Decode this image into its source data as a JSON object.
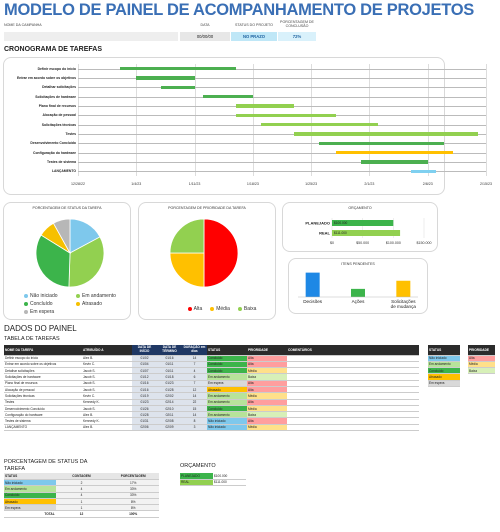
{
  "title": "MODELO DE PAINEL DE ACOMPANHAMENTO DE PROJETOS",
  "header": {
    "labels": [
      "NOME DA CAMPANHA",
      "DATA",
      "STATUS DO PROJETO",
      "PORCENTAGEM DE CONCLUSÃO"
    ],
    "date": "00/00/00",
    "status": "NO PRAZO",
    "pct": "72%"
  },
  "gantt": {
    "title": "CRONOGRAMA DE TAREFAS",
    "tasks": [
      {
        "name": "Definir escopo do início",
        "start": "2023-01-02",
        "end": "2023-01-16",
        "state": "done"
      },
      {
        "name": "Entrar em acordo sobre os objetivos",
        "start": "2023-01-04",
        "end": "2023-01-11",
        "state": "done"
      },
      {
        "name": "Detalhar solicitações",
        "start": "2023-01-07",
        "end": "2023-01-11",
        "state": "done"
      },
      {
        "name": "Solicitações de hardware",
        "start": "2023-01-12",
        "end": "2023-01-18",
        "state": "done"
      },
      {
        "name": "Plano final de recursos",
        "start": "2023-01-16",
        "end": "2023-01-23",
        "state": "planned"
      },
      {
        "name": "Alocação de pessoal",
        "start": "2023-01-16",
        "end": "2023-01-28",
        "state": "planned"
      },
      {
        "name": "Solicitações técnicas",
        "start": "2023-01-19",
        "end": "2023-02-02",
        "state": "planned"
      },
      {
        "name": "Testes",
        "start": "2023-01-23",
        "end": "2023-02-14",
        "state": "planned"
      },
      {
        "name": "Desenvolvimento Concluído",
        "start": "2023-01-26",
        "end": "2023-02-10",
        "state": "done"
      },
      {
        "name": "Configuração do hardware",
        "start": "2023-01-28",
        "end": "2023-02-11",
        "state": "late"
      },
      {
        "name": "Testes de sistema",
        "start": "2023-01-31",
        "end": "2023-02-08",
        "state": "done"
      },
      {
        "name": "LANÇAMENTO",
        "start": "2023-02-06",
        "end": "2023-02-09",
        "state": "notstarted"
      }
    ],
    "ticks": [
      "12/28/22",
      "1/4/23",
      "1/11/23",
      "1/18/23",
      "1/25/23",
      "2/1/23",
      "2/8/23",
      "2/15/23"
    ],
    "colors": {
      "done": "#4caf50",
      "planned": "#92d050",
      "late": "#ffc000",
      "notstarted": "#7fd0f0"
    }
  },
  "pie_status": {
    "title": "PORCENTAGEM DE STATUS DA TAREFA",
    "slices": [
      {
        "label": "Não iniciado",
        "value": 17,
        "color": "#7ec8ec"
      },
      {
        "label": "Em andamento",
        "value": 33,
        "color": "#92d050"
      },
      {
        "label": "Concluído",
        "value": 33,
        "color": "#3cb44b"
      },
      {
        "label": "Atrasado",
        "value": 8,
        "color": "#f6c000"
      },
      {
        "label": "Em espera",
        "value": 8,
        "color": "#b7b7b7"
      }
    ]
  },
  "pie_priority": {
    "title": "PORCENTAGEM DE PRIORIDADE DA TAREFA",
    "slices": [
      {
        "label": "Alta",
        "value": 50,
        "color": "#ff0000"
      },
      {
        "label": "Média",
        "value": 25,
        "color": "#ffc000"
      },
      {
        "label": "Baixa",
        "value": 25,
        "color": "#92d050"
      }
    ]
  },
  "budget": {
    "title": "ORÇAMENTO",
    "rows": [
      {
        "label": "PLANEJADO",
        "value": 100000,
        "color": "#3cb44b"
      },
      {
        "label": "REAL",
        "value": 111000,
        "color": "#92d050"
      }
    ],
    "data_labels": [
      "$100.000",
      "$111.000"
    ],
    "ticks": [
      "$0",
      "$50.000",
      "$100.000",
      "$150.000"
    ]
  },
  "open_items": {
    "title": "ITENS PENDENTES",
    "cats": [
      "Decisões",
      "Ações",
      "Solicitações de mudança"
    ],
    "values": [
      3,
      1,
      2
    ],
    "colors": [
      "#1e88e5",
      "#3cb44b",
      "#ffc000"
    ]
  },
  "data": {
    "title": "DADOS DO PAINEL",
    "tasks_title": "TABELA DE TAREFAS",
    "cols": [
      "NOME DA TAREFA",
      "ATRIBUÍDO A",
      "DATA DE INÍCIO",
      "DATA DE TÉRMINO",
      "DURAÇÃO em dias",
      "STATUS",
      "PRIORIDADE",
      "COMENTÁRIOS"
    ],
    "rows": [
      [
        "Definir escopo do início",
        "Alex B.",
        "01/02",
        "01/16",
        "14",
        "Concluído",
        "Alta"
      ],
      [
        "Entrar em acordo sobre os objetivos",
        "Kevin C.",
        "01/04",
        "01/11",
        "7",
        "Concluído",
        "Alta"
      ],
      [
        "Detalhar solicitações",
        "Jacob S.",
        "01/07",
        "01/11",
        "4",
        "Concluído",
        "Média"
      ],
      [
        "Solicitações de hardware",
        "Jacob S.",
        "01/12",
        "01/18",
        "6",
        "Em andamento",
        "Baixa"
      ],
      [
        "Plano final de recursos",
        "Jacob S.",
        "01/16",
        "01/23",
        "7",
        "Em espera",
        "Alta"
      ],
      [
        "Alocação de pessoal",
        "Jacob S.",
        "01/16",
        "01/28",
        "12",
        "Atrasado",
        "Alta"
      ],
      [
        "Solicitações técnicas",
        "Kevin C.",
        "01/19",
        "02/02",
        "14",
        "Em andamento",
        "Média"
      ],
      [
        "Testes",
        "Kennedy K.",
        "01/23",
        "02/14",
        "22",
        "Em andamento",
        "Alta"
      ],
      [
        "Desenvolvimento Concluído",
        "Jacob S.",
        "01/26",
        "02/10",
        "15",
        "Concluído",
        "Média"
      ],
      [
        "Configuração do hardware",
        "Alex B.",
        "01/28",
        "02/11",
        "14",
        "Em andamento",
        "Baixa"
      ],
      [
        "Testes de sistema",
        "Kennedy K.",
        "01/31",
        "02/08",
        "8",
        "Não iniciado",
        "Alta"
      ],
      [
        "LANÇAMENTO",
        "Alex B.",
        "02/06",
        "02/09",
        "3",
        "Não iniciado",
        "Média"
      ]
    ],
    "status_legend": {
      "title": "STATUS",
      "items": [
        "Não iniciado",
        "Em andamento",
        "Concluído",
        "Atrasado",
        "Em espera"
      ]
    },
    "priority_legend": {
      "title": "PRIORIDADE",
      "items": [
        "Alta",
        "Média",
        "Baixa"
      ]
    },
    "status_colors": {
      "Concluído": "#3cb44b",
      "Em andamento": "#b7e39a",
      "Em espera": "#d9d9d9",
      "Atrasado": "#ffc000",
      "Não iniciado": "#7ec8ec"
    },
    "priority_colors": {
      "Alta": "#ff9e9e",
      "Média": "#ffe08a",
      "Baixa": "#d7f0b8"
    }
  },
  "status_pct": {
    "title": "PORCENTAGEM DE STATUS DA TAREFA",
    "cols": [
      "STATUS",
      "CONTAGEM",
      "PORCENTAGEM"
    ],
    "rows": [
      [
        "Não iniciado",
        "2",
        "17%"
      ],
      [
        "Em andamento",
        "4",
        "33%"
      ],
      [
        "Concluído",
        "4",
        "33%"
      ],
      [
        "Atrasado",
        "1",
        "8%"
      ],
      [
        "Em espera",
        "1",
        "8%"
      ]
    ],
    "total": [
      "TOTAL",
      "12",
      "100%"
    ]
  },
  "budget_table": {
    "title": "ORÇAMENTO",
    "rows": [
      [
        "PLANEJADO",
        "$100.000"
      ],
      [
        "REAL",
        "$111.000"
      ]
    ]
  }
}
